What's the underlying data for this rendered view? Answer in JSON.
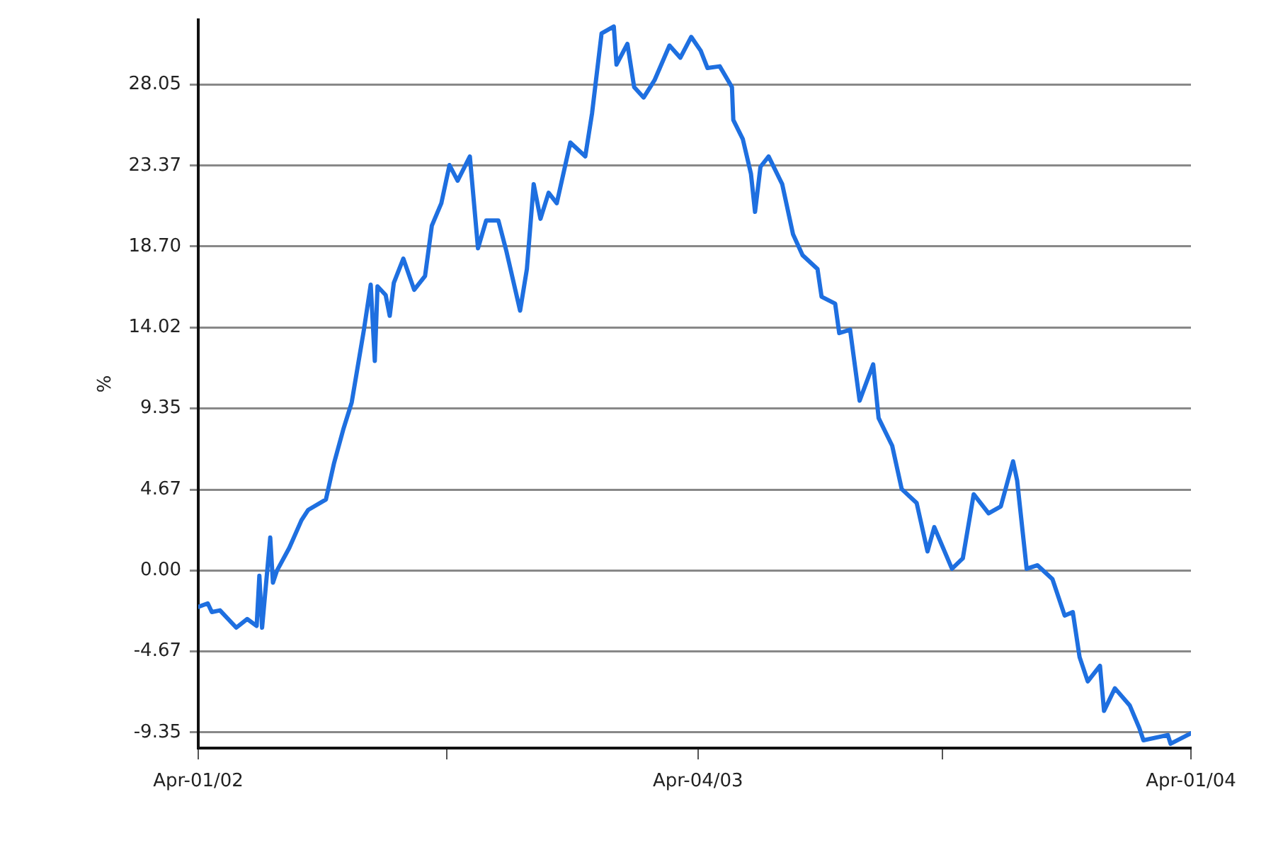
{
  "chart_data": {
    "type": "line",
    "ylabel": "%",
    "xlim": [
      "2002-04-01",
      "2004-04-01"
    ],
    "xticks": [
      {
        "value": "2002-04-01",
        "label": "Apr-01/02"
      },
      {
        "value": "2002-10-01",
        "label": null
      },
      {
        "value": "2003-04-04",
        "label": "Apr-04/03"
      },
      {
        "value": "2003-10-01",
        "label": null
      },
      {
        "value": "2004-04-01",
        "label": "Apr-01/04"
      }
    ],
    "ylim": [
      -10.25,
      31.8
    ],
    "yticks": [
      -9.35,
      -4.67,
      {
        "value": 0,
        "label": "0.00"
      },
      4.67,
      9.35,
      14.02,
      {
        "value": 18.7,
        "label": "18.70"
      },
      23.37,
      28.05
    ],
    "grid": "y",
    "legend": false,
    "marker": "none",
    "line_style": "solid",
    "x": [
      "2002-04-01",
      "2002-04-08",
      "2002-04-11",
      "2002-04-17",
      "2002-04-29",
      "2002-05-07",
      "2002-05-14",
      "2002-05-16",
      "2002-05-18",
      "2002-05-24",
      "2002-05-26",
      "2002-05-29",
      "2002-06-07",
      "2002-06-16",
      "2002-06-21",
      "2002-07-04",
      "2002-07-10",
      "2002-07-17",
      "2002-07-23",
      "2002-08-01",
      "2002-08-06",
      "2002-08-09",
      "2002-08-11",
      "2002-08-17",
      "2002-08-20",
      "2002-08-23",
      "2002-08-30",
      "2002-09-07",
      "2002-09-15",
      "2002-09-20",
      "2002-09-27",
      "2002-10-03",
      "2002-10-09",
      "2002-10-18",
      "2002-10-24",
      "2002-10-30",
      "2002-11-08",
      "2002-11-14",
      "2002-11-24",
      "2002-11-29",
      "2002-12-04",
      "2002-12-09",
      "2002-12-15",
      "2002-12-21",
      "2002-12-31",
      "2003-01-11",
      "2003-01-16",
      "2003-01-23",
      "2003-02-01",
      "2003-02-03",
      "2003-02-11",
      "2003-02-16",
      "2003-02-23",
      "2003-03-03",
      "2003-03-14",
      "2003-03-22",
      "2003-03-30",
      "2003-04-06",
      "2003-04-11",
      "2003-04-20",
      "2003-04-29",
      "2003-04-30",
      "2003-05-07",
      "2003-05-13",
      "2003-05-16",
      "2003-05-20",
      "2003-05-26",
      "2003-06-05",
      "2003-06-13",
      "2003-06-20",
      "2003-07-01",
      "2003-07-04",
      "2003-07-14",
      "2003-07-17",
      "2003-07-25",
      "2003-08-01",
      "2003-08-11",
      "2003-08-15",
      "2003-08-25",
      "2003-09-01",
      "2003-09-12",
      "2003-09-20",
      "2003-09-25",
      "2003-10-08",
      "2003-10-16",
      "2003-10-24",
      "2003-11-04",
      "2003-11-13",
      "2003-11-22",
      "2003-11-25",
      "2003-12-02",
      "2003-12-10",
      "2003-12-21",
      "2003-12-30",
      "2004-01-05",
      "2004-01-10",
      "2004-01-16",
      "2004-01-25",
      "2004-01-28",
      "2004-02-05",
      "2004-02-16",
      "2004-02-23",
      "2004-02-26",
      "2004-03-15",
      "2004-03-17",
      "2004-04-01"
    ],
    "series": [
      {
        "color": "#1e6fe0",
        "values": [
          -2.1,
          -1.9,
          -2.4,
          -2.3,
          -3.3,
          -2.8,
          -3.2,
          -0.3,
          -3.3,
          1.9,
          -0.7,
          0,
          1.3,
          2.9,
          3.5,
          4.1,
          6.2,
          8.2,
          9.7,
          13.9,
          16.5,
          12.1,
          16.4,
          15.9,
          14.7,
          16.6,
          18.0,
          16.2,
          17.0,
          19.9,
          21.2,
          23.4,
          22.5,
          23.9,
          18.6,
          20.2,
          20.2,
          18.4,
          15.0,
          17.4,
          22.3,
          20.3,
          21.8,
          21.2,
          24.7,
          23.9,
          26.4,
          31.0,
          31.4,
          29.2,
          30.4,
          27.9,
          27.3,
          28.3,
          30.3,
          29.6,
          30.8,
          30.0,
          29.0,
          29.1,
          27.9,
          26.0,
          24.9,
          22.9,
          20.7,
          23.3,
          23.9,
          22.3,
          19.4,
          18.2,
          17.4,
          15.8,
          15.4,
          13.7,
          13.9,
          9.8,
          11.9,
          8.8,
          7.2,
          4.7,
          3.9,
          1.1,
          2.5,
          0.1,
          0.7,
          4.4,
          3.3,
          3.7,
          6.3,
          5.2,
          0.1,
          0.3,
          -0.5,
          -2.6,
          -2.4,
          -5.0,
          -6.4,
          -5.5,
          -8.1,
          -6.8,
          -7.8,
          -9.1,
          -9.8,
          -9.5,
          -10.0,
          -9.4
        ]
      }
    ]
  }
}
